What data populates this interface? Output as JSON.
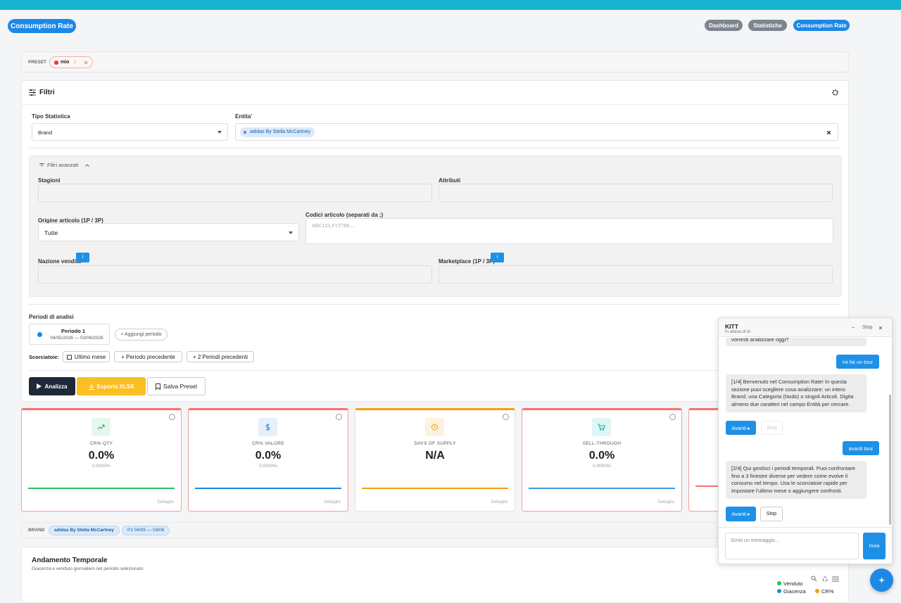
{
  "header": {
    "title": "Consumption Rate",
    "nav": [
      "Dashboard",
      "Statistiche",
      "Consumption Rate"
    ]
  },
  "preset": {
    "label": "PRESET",
    "chip": "mio",
    "count": "2"
  },
  "filters": {
    "title": "Filtri",
    "tipo_label": "Tipo Statistica",
    "tipo_value": "Brand",
    "entita_label": "Entita'",
    "entita_chip": "adidas By Stella McCartney",
    "advanced": {
      "title": "Filtri avanzati",
      "stagioni": "Stagioni",
      "attributi": "Attributi",
      "origine": "Origine articolo (1P / 3P)",
      "origine_value": "Tutte",
      "codici": "Codici articolo (separati da ;)",
      "codici_placeholder": "ABC123,XYZ789,...",
      "nazione": "Nazione vendita",
      "marketplace": "Marketplace (1P / 3P)",
      "info": "i"
    },
    "periodi_label": "Periodi di analisi",
    "periodo_name": "Periodo 1",
    "periodo_dates": "04/05/2026 — 03/06/2026",
    "aggiungi": "+ Aggiungi periodo",
    "scorciatoie_label": "Scorciatoie:",
    "shortcuts": [
      "Ultimo mese",
      "+ Periodo precedente",
      "+ 2 Periodi precedenti"
    ],
    "buttons": [
      "Analizza",
      "Esporta XLSX",
      "Salva Preset"
    ]
  },
  "kpis": [
    {
      "label": "CR% QTY",
      "value": "0.0%",
      "sub": "0.0000%",
      "link": "Dettaglio"
    },
    {
      "label": "CR% VALORE",
      "value": "0.0%",
      "sub": "0.0000%",
      "link": "Dettaglio"
    },
    {
      "label": "DAYS OF SUPPLY",
      "value": "N/A",
      "link": "Dettaglio"
    },
    {
      "label": "SELL-THROUGH",
      "value": "0.0%",
      "sub": "0.0000%",
      "link": "Dettaglio"
    }
  ],
  "context": {
    "label": "BRAND",
    "chips": [
      "adidas By Stella McCartney",
      "P1 04/05 — 03/06"
    ]
  },
  "trend": {
    "title": "Andamento Temporale",
    "subtitle": "Giacenza e venduto giornaliero nel periodo selezionato",
    "legend": [
      "Venduto",
      "Giacenza",
      "CR%"
    ]
  },
  "chat": {
    "title": "KITT",
    "status": "In attesa di te",
    "stop": "Stop",
    "messages": [
      {
        "from": "bot",
        "text": "vorresti analizzare oggi?"
      },
      {
        "from": "user",
        "text": "mi fai un tour"
      },
      {
        "from": "bot",
        "text": "[1/4] Benvenuto nel Consumption Rate! In questa sezione puoi scegliere cosa analizzare: un intero Brand, una Categoria (Nodo) o singoli Articoli. Digita almeno due caratteri nel campo Entità per cercare."
      },
      {
        "from": "user",
        "text": "avanti tour"
      },
      {
        "from": "bot",
        "text": "[2/4] Qui gestisci i periodi temporali. Puoi confrontare fino a 3 finestre diverse per vedere come evolve il consumo nel tempo. Usa le scorciatoie rapide per impostare l'ultimo mese o aggiungere confronti."
      }
    ],
    "next": "Avanti ▸",
    "placeholder": "Scrivi un messaggio...",
    "send": "Invia"
  }
}
